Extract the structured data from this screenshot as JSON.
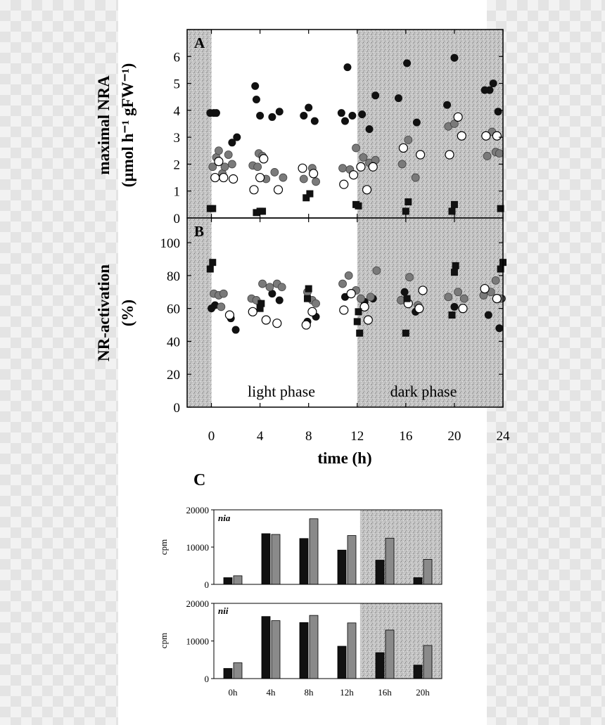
{
  "colors": {
    "dark_shade": "#bdbdbd",
    "filled_black": "#111111",
    "filled_grey": "#7a7a7a",
    "open": "#ffffff",
    "bar_black": "#111111",
    "bar_grey": "#8a8a8a"
  },
  "chart_data": [
    {
      "panel": "A",
      "type": "scatter",
      "ylabel": [
        "maximal NRA",
        "(µmol h⁻¹ gFW⁻¹)"
      ],
      "xlabel": "time (h)",
      "xlim": [
        -2,
        24
      ],
      "ylim": [
        0,
        7
      ],
      "x_ticks": [
        "0",
        "4",
        "8",
        "12",
        "16",
        "20",
        "24"
      ],
      "y_ticks": [
        "0",
        "1",
        "2",
        "3",
        "4",
        "5",
        "6"
      ],
      "dark_periods": [
        [
          -2,
          0
        ],
        [
          12,
          24
        ]
      ],
      "series": [
        {
          "marker": "filled-circle-black",
          "points": [
            [
              -0.1,
              3.9
            ],
            [
              0.2,
              3.9
            ],
            [
              0.4,
              3.9
            ],
            [
              1.7,
              2.8
            ],
            [
              2.1,
              3.0
            ],
            [
              3.6,
              4.9
            ],
            [
              3.7,
              4.4
            ],
            [
              4.0,
              3.8
            ],
            [
              5.0,
              3.75
            ],
            [
              5.6,
              3.95
            ],
            [
              7.6,
              3.8
            ],
            [
              8.0,
              4.1
            ],
            [
              8.5,
              3.6
            ],
            [
              10.7,
              3.9
            ],
            [
              11.0,
              3.6
            ],
            [
              11.2,
              5.6
            ],
            [
              11.6,
              3.8
            ],
            [
              12.4,
              3.85
            ],
            [
              13.0,
              3.3
            ],
            [
              13.5,
              4.55
            ],
            [
              15.4,
              4.45
            ],
            [
              16.1,
              5.75
            ],
            [
              16.9,
              3.55
            ],
            [
              19.4,
              4.2
            ],
            [
              20.0,
              5.95
            ],
            [
              22.5,
              4.75
            ],
            [
              22.9,
              4.75
            ],
            [
              23.2,
              5.0
            ],
            [
              23.6,
              3.95
            ]
          ]
        },
        {
          "marker": "filled-circle-grey",
          "points": [
            [
              0.1,
              1.9
            ],
            [
              0.4,
              2.25
            ],
            [
              0.6,
              2.5
            ],
            [
              0.9,
              1.65
            ],
            [
              1.1,
              1.9
            ],
            [
              1.4,
              2.35
            ],
            [
              1.7,
              2.0
            ],
            [
              3.4,
              1.95
            ],
            [
              3.8,
              1.9
            ],
            [
              3.9,
              2.4
            ],
            [
              4.2,
              2.3
            ],
            [
              4.5,
              1.45
            ],
            [
              5.2,
              1.7
            ],
            [
              5.9,
              1.5
            ],
            [
              7.6,
              1.45
            ],
            [
              8.3,
              1.85
            ],
            [
              8.6,
              1.35
            ],
            [
              10.8,
              1.85
            ],
            [
              11.4,
              1.8
            ],
            [
              11.9,
              2.6
            ],
            [
              12.5,
              2.25
            ],
            [
              13.0,
              2.05
            ],
            [
              13.5,
              2.15
            ],
            [
              15.7,
              2.0
            ],
            [
              16.2,
              2.9
            ],
            [
              16.8,
              1.5
            ],
            [
              19.5,
              3.4
            ],
            [
              20.0,
              3.5
            ],
            [
              22.7,
              2.3
            ],
            [
              23.1,
              3.2
            ],
            [
              23.4,
              2.45
            ],
            [
              23.7,
              2.4
            ]
          ]
        },
        {
          "marker": "open-circle",
          "points": [
            [
              0.3,
              1.5
            ],
            [
              0.6,
              2.1
            ],
            [
              1.0,
              1.5
            ],
            [
              1.8,
              1.45
            ],
            [
              3.5,
              1.05
            ],
            [
              4.0,
              1.5
            ],
            [
              4.3,
              2.2
            ],
            [
              5.5,
              1.05
            ],
            [
              7.5,
              1.85
            ],
            [
              8.4,
              1.65
            ],
            [
              10.9,
              1.25
            ],
            [
              11.7,
              1.6
            ],
            [
              12.3,
              1.9
            ],
            [
              12.8,
              1.05
            ],
            [
              13.3,
              1.9
            ],
            [
              15.8,
              2.6
            ],
            [
              17.2,
              2.35
            ],
            [
              19.6,
              2.35
            ],
            [
              20.3,
              3.75
            ],
            [
              20.6,
              3.05
            ],
            [
              22.6,
              3.05
            ],
            [
              23.5,
              3.05
            ]
          ]
        },
        {
          "marker": "filled-square",
          "points": [
            [
              -0.1,
              0.35
            ],
            [
              0.1,
              0.35
            ],
            [
              3.7,
              0.2
            ],
            [
              4.0,
              0.25
            ],
            [
              4.2,
              0.25
            ],
            [
              7.8,
              0.75
            ],
            [
              8.1,
              0.9
            ],
            [
              11.9,
              0.5
            ],
            [
              12.1,
              0.45
            ],
            [
              16.2,
              0.6
            ],
            [
              16.0,
              0.25
            ],
            [
              19.8,
              0.25
            ],
            [
              20.0,
              0.5
            ],
            [
              23.8,
              0.35
            ]
          ]
        }
      ]
    },
    {
      "panel": "B",
      "type": "scatter",
      "ylabel": [
        "NR-activation",
        "(%)"
      ],
      "xlabel": "time (h)",
      "xlim": [
        -2,
        24
      ],
      "ylim": [
        0,
        115
      ],
      "x_ticks": [
        "0",
        "4",
        "8",
        "12",
        "16",
        "20",
        "24"
      ],
      "y_ticks": [
        "0",
        "20",
        "40",
        "60",
        "80",
        "100"
      ],
      "dark_periods": [
        [
          -2,
          0
        ],
        [
          12,
          24
        ]
      ],
      "phase_labels": [
        "light phase",
        "dark phase"
      ],
      "series": [
        {
          "marker": "filled-circle-black",
          "points": [
            [
              0.0,
              60
            ],
            [
              0.3,
              62
            ],
            [
              1.6,
              54
            ],
            [
              2.0,
              47
            ],
            [
              4.0,
              63
            ],
            [
              5.0,
              69
            ],
            [
              5.6,
              65
            ],
            [
              7.9,
              52
            ],
            [
              8.6,
              55
            ],
            [
              11.0,
              67
            ],
            [
              12.6,
              64
            ],
            [
              13.3,
              66
            ],
            [
              15.9,
              70
            ],
            [
              16.8,
              58
            ],
            [
              20.0,
              61
            ],
            [
              22.8,
              56
            ],
            [
              23.7,
              48
            ],
            [
              23.9,
              66
            ]
          ]
        },
        {
          "marker": "filled-circle-grey",
          "points": [
            [
              0.2,
              69
            ],
            [
              0.6,
              68
            ],
            [
              1.0,
              69
            ],
            [
              0.8,
              61
            ],
            [
              3.3,
              66
            ],
            [
              3.7,
              65
            ],
            [
              4.2,
              75
            ],
            [
              4.8,
              73
            ],
            [
              5.4,
              75
            ],
            [
              5.8,
              73
            ],
            [
              7.9,
              70
            ],
            [
              8.3,
              65
            ],
            [
              8.6,
              63
            ],
            [
              10.8,
              75
            ],
            [
              11.3,
              80
            ],
            [
              11.9,
              71
            ],
            [
              12.3,
              66
            ],
            [
              13.1,
              67
            ],
            [
              13.6,
              83
            ],
            [
              15.6,
              65
            ],
            [
              16.3,
              79
            ],
            [
              17.0,
              62
            ],
            [
              19.5,
              67
            ],
            [
              20.3,
              70
            ],
            [
              20.8,
              66
            ],
            [
              22.4,
              68
            ],
            [
              23.0,
              70
            ],
            [
              23.4,
              77
            ],
            [
              23.8,
              66
            ]
          ]
        },
        {
          "marker": "open-circle",
          "points": [
            [
              1.5,
              56
            ],
            [
              3.4,
              58
            ],
            [
              4.5,
              53
            ],
            [
              5.4,
              51
            ],
            [
              7.8,
              50
            ],
            [
              8.3,
              58
            ],
            [
              10.9,
              59
            ],
            [
              11.5,
              69
            ],
            [
              12.6,
              61
            ],
            [
              12.9,
              53
            ],
            [
              16.2,
              63
            ],
            [
              17.1,
              60
            ],
            [
              17.4,
              71
            ],
            [
              20.7,
              60
            ],
            [
              22.5,
              72
            ],
            [
              23.5,
              66
            ]
          ]
        },
        {
          "marker": "filled-square",
          "points": [
            [
              -0.1,
              84
            ],
            [
              0.1,
              88
            ],
            [
              4.0,
              60
            ],
            [
              4.1,
              63
            ],
            [
              7.9,
              66
            ],
            [
              8.0,
              72
            ],
            [
              12.0,
              52
            ],
            [
              12.2,
              45
            ],
            [
              12.1,
              58
            ],
            [
              16.0,
              45
            ],
            [
              16.1,
              66
            ],
            [
              19.8,
              56
            ],
            [
              20.0,
              82
            ],
            [
              20.1,
              86
            ],
            [
              23.8,
              84
            ],
            [
              24.0,
              88
            ]
          ]
        }
      ]
    },
    {
      "panel": "C",
      "type": "bar",
      "gene": "nia",
      "ylabel": "cpm",
      "ylim": [
        0,
        20000
      ],
      "y_ticks": [
        "0",
        "10000",
        "20000"
      ],
      "categories": [
        "0h",
        "4h",
        "8h",
        "12h",
        "16h",
        "20h"
      ],
      "dark_categories": [
        "16h",
        "20h"
      ],
      "series": [
        {
          "color": "bar_black",
          "values": [
            1800,
            13600,
            12300,
            9200,
            6500,
            1800
          ]
        },
        {
          "color": "bar_grey",
          "values": [
            2300,
            13400,
            17600,
            13100,
            12400,
            6700
          ]
        }
      ]
    },
    {
      "panel": "C",
      "type": "bar",
      "gene": "nii",
      "ylabel": "cpm",
      "ylim": [
        0,
        20000
      ],
      "y_ticks": [
        "0",
        "10000",
        "20000"
      ],
      "categories": [
        "0h",
        "4h",
        "8h",
        "12h",
        "16h",
        "20h"
      ],
      "dark_categories": [
        "16h",
        "20h"
      ],
      "series": [
        {
          "color": "bar_black",
          "values": [
            2700,
            16500,
            14900,
            8600,
            6900,
            3600
          ]
        },
        {
          "color": "bar_grey",
          "values": [
            4200,
            15400,
            16800,
            14800,
            12900,
            8800
          ]
        }
      ]
    }
  ],
  "labels": {
    "panel_a": "A",
    "panel_b": "B",
    "panel_c": "C",
    "a_ylabel_1": "maximal NRA",
    "a_ylabel_2": "(µmol h⁻¹ gFW⁻¹)",
    "b_ylabel_1": "NR-activation",
    "b_ylabel_2": "(%)",
    "xlabel": "time (h)",
    "light_phase": "light phase",
    "dark_phase": "dark phase",
    "c_ylabel": "cpm",
    "gene_1": "nia",
    "gene_2": "nii"
  }
}
